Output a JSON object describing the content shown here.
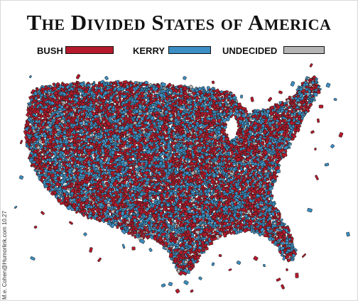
{
  "title": "The Divided States of America",
  "legend": [
    {
      "label": "BUSH",
      "color": "#b5192b"
    },
    {
      "label": "KERRY",
      "color": "#3b8fc4"
    },
    {
      "label": "UNDECIDED",
      "color": "#b5b5b5"
    }
  ],
  "credit": "M.e. Cohen@Humorlink.com  10.27",
  "icons": {
    "map": "us-map-of-confetti-pieces"
  }
}
